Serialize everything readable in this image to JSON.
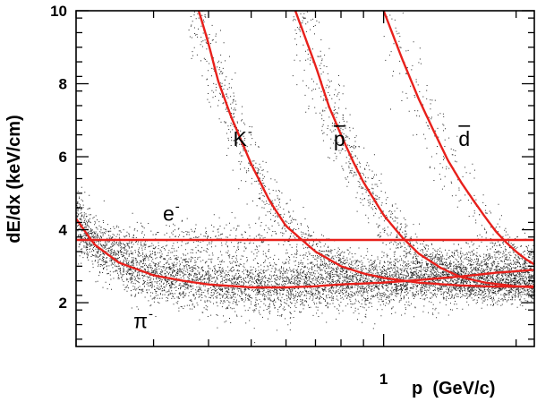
{
  "chart_data": {
    "type": "scatter",
    "xlabel": "p  (GeV/c)",
    "ylabel": "dE/dx  (keV/cm)",
    "x_scale": "log",
    "xlim": [
      0.2,
      2.2
    ],
    "ylim": [
      0.8,
      10
    ],
    "y_ticks": [
      {
        "value": 2,
        "label": "2"
      },
      {
        "value": 4,
        "label": "4"
      },
      {
        "value": 6,
        "label": "6"
      },
      {
        "value": 8,
        "label": "8"
      },
      {
        "value": 10,
        "label": "10"
      }
    ],
    "x_tick_labels": [
      {
        "value": 1,
        "label": "1"
      }
    ],
    "density_bands": [
      {
        "name": "pi",
        "level": 2.55,
        "spread": 0.35,
        "weight": 0.62
      },
      {
        "name": "K",
        "weight": 0.17
      },
      {
        "name": "p",
        "weight": 0.13
      },
      {
        "name": "d",
        "weight": 0.03
      },
      {
        "name": "e",
        "level": 3.7,
        "spread": 0.28,
        "weight": 0.05
      }
    ],
    "curves": [
      {
        "name": "pi",
        "points": [
          [
            0.2,
            4.3
          ],
          [
            0.22,
            3.6
          ],
          [
            0.25,
            3.1
          ],
          [
            0.3,
            2.75
          ],
          [
            0.35,
            2.6
          ],
          [
            0.4,
            2.5
          ],
          [
            0.5,
            2.42
          ],
          [
            0.6,
            2.42
          ],
          [
            0.7,
            2.45
          ],
          [
            0.8,
            2.5
          ],
          [
            1.0,
            2.55
          ],
          [
            1.2,
            2.62
          ],
          [
            1.5,
            2.72
          ],
          [
            1.8,
            2.82
          ],
          [
            2.2,
            2.9
          ]
        ]
      },
      {
        "name": "e",
        "points": [
          [
            0.2,
            3.72
          ],
          [
            2.2,
            3.72
          ]
        ]
      },
      {
        "name": "K",
        "points": [
          [
            0.38,
            10
          ],
          [
            0.4,
            9.1
          ],
          [
            0.42,
            8.1
          ],
          [
            0.45,
            7.1
          ],
          [
            0.5,
            5.8
          ],
          [
            0.55,
            4.8
          ],
          [
            0.6,
            4.1
          ],
          [
            0.7,
            3.4
          ],
          [
            0.8,
            3.0
          ],
          [
            0.9,
            2.8
          ],
          [
            1.0,
            2.68
          ],
          [
            1.2,
            2.55
          ],
          [
            1.5,
            2.47
          ],
          [
            1.8,
            2.44
          ],
          [
            2.2,
            2.45
          ]
        ]
      },
      {
        "name": "p",
        "points": [
          [
            0.63,
            10
          ],
          [
            0.7,
            8.5
          ],
          [
            0.75,
            7.4
          ],
          [
            0.8,
            6.6
          ],
          [
            0.85,
            5.9
          ],
          [
            0.9,
            5.3
          ],
          [
            1.0,
            4.4
          ],
          [
            1.1,
            3.8
          ],
          [
            1.2,
            3.35
          ],
          [
            1.35,
            2.95
          ],
          [
            1.5,
            2.7
          ],
          [
            1.7,
            2.55
          ],
          [
            2.0,
            2.45
          ],
          [
            2.2,
            2.42
          ]
        ]
      },
      {
        "name": "d",
        "points": [
          [
            1.0,
            10
          ],
          [
            1.1,
            8.7
          ],
          [
            1.2,
            7.6
          ],
          [
            1.3,
            6.7
          ],
          [
            1.4,
            5.9
          ],
          [
            1.5,
            5.3
          ],
          [
            1.6,
            4.8
          ],
          [
            1.7,
            4.35
          ],
          [
            1.8,
            3.95
          ],
          [
            1.9,
            3.65
          ],
          [
            2.0,
            3.4
          ],
          [
            2.1,
            3.2
          ],
          [
            2.2,
            3.05
          ]
        ]
      }
    ],
    "labels": [
      {
        "text": "e",
        "sup": "-",
        "x": 0.315,
        "y": 4.25
      },
      {
        "text": "K",
        "sup": "-",
        "x": 0.455,
        "y": 6.3
      },
      {
        "text": "p",
        "overline": true,
        "x": 0.77,
        "y": 6.3
      },
      {
        "text": "d",
        "overline": true,
        "x": 1.48,
        "y": 6.3
      },
      {
        "text": "π",
        "sup": "-",
        "x": 0.27,
        "y": 1.3
      }
    ]
  }
}
